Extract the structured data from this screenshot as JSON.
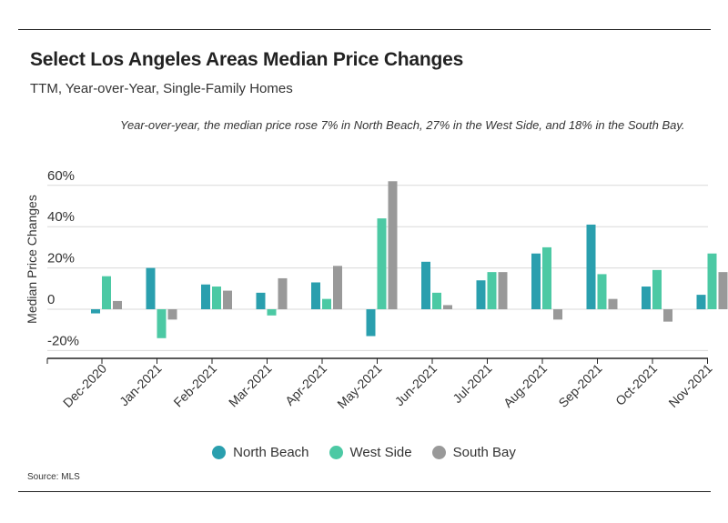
{
  "header": {
    "title": "Select Los Angeles Areas Median Price Changes",
    "subtitle": "TTM, Year-over-Year, Single-Family Homes"
  },
  "annotation": "Year-over-year, the median price rose 7% in North Beach, 27% in the West Side, and 18% in the South Bay.",
  "source": "Source:  MLS",
  "colors": {
    "north_beach": "#2a9fae",
    "west_side": "#4cc9a4",
    "south_bay": "#999999"
  },
  "chart_data": {
    "type": "bar",
    "ylabel": "Median Price Changes",
    "xlabel": "",
    "ylim": [
      -20,
      60
    ],
    "yticks": [
      -20,
      0,
      20,
      40,
      60
    ],
    "ytick_labels": [
      "-20%",
      "0",
      "20%",
      "40%",
      "60%"
    ],
    "grid": true,
    "legend_position": "bottom-center",
    "categories": [
      "Dec-2020",
      "Jan-2021",
      "Feb-2021",
      "Mar-2021",
      "Apr-2021",
      "May-2021",
      "Jun-2021",
      "Jul-2021",
      "Aug-2021",
      "Sep-2021",
      "Oct-2021",
      "Nov-2021"
    ],
    "series": [
      {
        "name": "North Beach",
        "color": "#2a9fae",
        "values": [
          -2,
          20,
          12,
          8,
          13,
          -13,
          23,
          14,
          27,
          41,
          11,
          7
        ]
      },
      {
        "name": "West Side",
        "color": "#4cc9a4",
        "values": [
          16,
          -14,
          11,
          -3,
          5,
          44,
          8,
          18,
          30,
          17,
          19,
          27
        ]
      },
      {
        "name": "South Bay",
        "color": "#999999",
        "values": [
          4,
          -5,
          9,
          15,
          21,
          62,
          2,
          18,
          -5,
          5,
          -6,
          18
        ]
      }
    ]
  }
}
